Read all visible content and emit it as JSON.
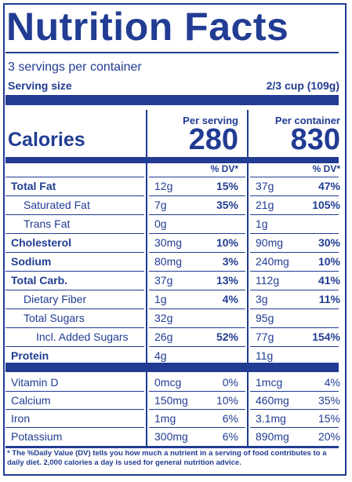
{
  "title": "Nutrition Facts",
  "servings_per_container": "3 servings per container",
  "serving_size_label": "Serving size",
  "serving_size_value": "2/3 cup (109g)",
  "columns": {
    "per_serving": "Per serving",
    "per_container": "Per container"
  },
  "calories": {
    "label": "Calories",
    "per_serving": "280",
    "per_container": "830"
  },
  "dv_header": "% DV*",
  "nutrients": [
    {
      "name": "Total Fat",
      "bold": true,
      "indent": 0,
      "serv_amt": "12g",
      "serv_dv": "15%",
      "cont_amt": "37g",
      "cont_dv": "47%"
    },
    {
      "name": "Saturated Fat",
      "bold": false,
      "indent": 1,
      "serv_amt": "7g",
      "serv_dv": "35%",
      "cont_amt": "21g",
      "cont_dv": "105%"
    },
    {
      "name": "Trans Fat",
      "bold": false,
      "indent": 1,
      "serv_amt": "0g",
      "serv_dv": "",
      "cont_amt": "1g",
      "cont_dv": ""
    },
    {
      "name": "Cholesterol",
      "bold": true,
      "indent": 0,
      "serv_amt": "30mg",
      "serv_dv": "10%",
      "cont_amt": "90mg",
      "cont_dv": "30%"
    },
    {
      "name": "Sodium",
      "bold": true,
      "indent": 0,
      "serv_amt": "80mg",
      "serv_dv": "3%",
      "cont_amt": "240mg",
      "cont_dv": "10%"
    },
    {
      "name": "Total Carb.",
      "bold": true,
      "indent": 0,
      "serv_amt": "37g",
      "serv_dv": "13%",
      "cont_amt": "112g",
      "cont_dv": "41%"
    },
    {
      "name": "Dietary Fiber",
      "bold": false,
      "indent": 1,
      "serv_amt": "1g",
      "serv_dv": "4%",
      "cont_amt": "3g",
      "cont_dv": "11%"
    },
    {
      "name": "Total Sugars",
      "bold": false,
      "indent": 1,
      "serv_amt": "32g",
      "serv_dv": "",
      "cont_amt": "95g",
      "cont_dv": ""
    },
    {
      "name": "Incl. Added Sugars",
      "bold": false,
      "indent": 2,
      "serv_amt": "26g",
      "serv_dv": "52%",
      "cont_amt": "77g",
      "cont_dv": "154%"
    },
    {
      "name": "Protein",
      "bold": true,
      "indent": 0,
      "serv_amt": "4g",
      "serv_dv": "",
      "cont_amt": "11g",
      "cont_dv": ""
    }
  ],
  "micronutrients": [
    {
      "name": "Vitamin D",
      "serv_amt": "0mcg",
      "serv_dv": "0%",
      "cont_amt": "1mcg",
      "cont_dv": "4%"
    },
    {
      "name": "Calcium",
      "serv_amt": "150mg",
      "serv_dv": "10%",
      "cont_amt": "460mg",
      "cont_dv": "35%"
    },
    {
      "name": "Iron",
      "serv_amt": "1mg",
      "serv_dv": "6%",
      "cont_amt": "3.1mg",
      "cont_dv": "15%"
    },
    {
      "name": "Potassium",
      "serv_amt": "300mg",
      "serv_dv": "6%",
      "cont_amt": "890mg",
      "cont_dv": "20%"
    }
  ],
  "footnote": "* The %Daily Value (DV) tells you how much a nutrient in a serving of food contributes to a daily diet. 2,000 calories a day is used for general nutrition advice."
}
